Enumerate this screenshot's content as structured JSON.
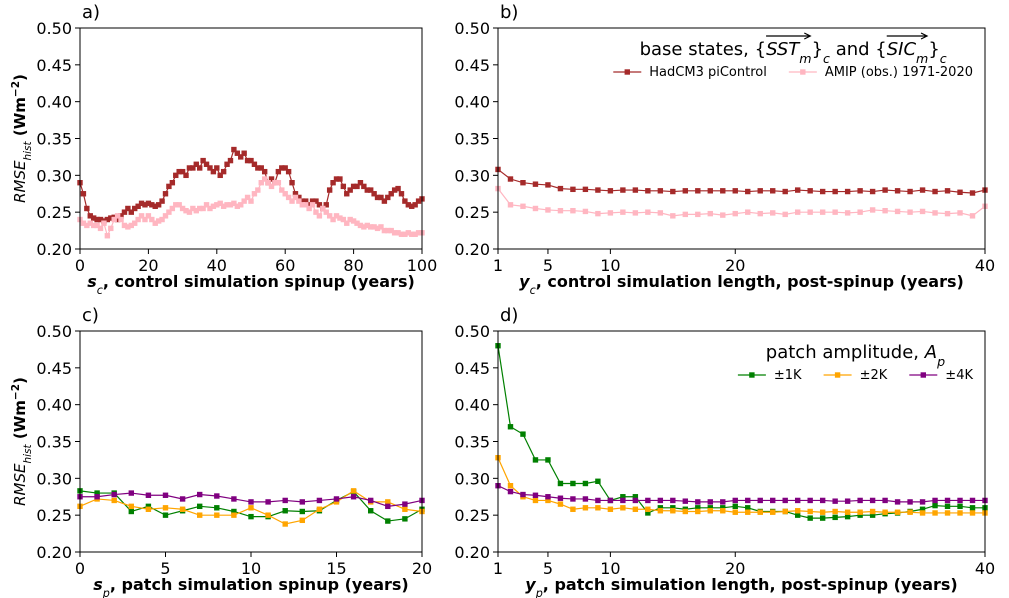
{
  "chart_data": [
    {
      "type": "line",
      "panel_label": "a)",
      "xlabel": [
        {
          "text": "s",
          "italic": true,
          "bold": true
        },
        {
          "text": "c",
          "italic": true,
          "shift": "sub"
        },
        {
          "text": ", control simulation spinup (years)",
          "bold": true
        }
      ],
      "ylabel": [
        {
          "text": "RMSE",
          "italic": true
        },
        {
          "text": "hist",
          "italic": true,
          "shift": "sub"
        },
        {
          "text": " (Wm",
          "bold": true
        },
        {
          "text": "−2",
          "bold": true,
          "shift": "super"
        },
        {
          "text": ")",
          "bold": true
        }
      ],
      "xlim": [
        0,
        100
      ],
      "xticks": [
        0,
        20,
        40,
        60,
        80,
        100
      ],
      "ylim": [
        0.2,
        0.5
      ],
      "yticks": [
        {
          "value": 0.2,
          "label": "0.20"
        },
        {
          "value": 0.25,
          "label": "0.25"
        },
        {
          "value": 0.3,
          "label": "0.30"
        },
        {
          "value": 0.35,
          "label": "0.35"
        },
        {
          "value": 0.4,
          "label": "0.40"
        },
        {
          "value": 0.45,
          "label": "0.45"
        },
        {
          "value": 0.5,
          "label": "0.50"
        }
      ],
      "x": [
        0,
        1,
        2,
        3,
        4,
        5,
        6,
        7,
        8,
        9,
        10,
        11,
        12,
        13,
        14,
        15,
        16,
        17,
        18,
        19,
        20,
        21,
        22,
        23,
        24,
        25,
        26,
        27,
        28,
        29,
        30,
        31,
        32,
        33,
        34,
        35,
        36,
        37,
        38,
        39,
        40,
        41,
        42,
        43,
        44,
        45,
        46,
        47,
        48,
        49,
        50,
        51,
        52,
        53,
        54,
        55,
        56,
        57,
        58,
        59,
        60,
        61,
        62,
        63,
        64,
        65,
        66,
        67,
        68,
        69,
        70,
        71,
        72,
        73,
        74,
        75,
        76,
        77,
        78,
        79,
        80,
        81,
        82,
        83,
        84,
        85,
        86,
        87,
        88,
        89,
        90,
        91,
        92,
        93,
        94,
        95,
        96,
        97,
        98,
        99,
        100
      ],
      "series": [
        {
          "color": "#a52a2a",
          "values": [
            0.29,
            0.275,
            0.255,
            0.245,
            0.242,
            0.24,
            0.24,
            0.238,
            0.24,
            0.242,
            0.243,
            0.24,
            0.245,
            0.25,
            0.255,
            0.25,
            0.255,
            0.258,
            0.262,
            0.26,
            0.262,
            0.26,
            0.258,
            0.26,
            0.265,
            0.275,
            0.285,
            0.29,
            0.3,
            0.305,
            0.305,
            0.3,
            0.31,
            0.31,
            0.315,
            0.31,
            0.32,
            0.315,
            0.31,
            0.305,
            0.31,
            0.3,
            0.305,
            0.315,
            0.32,
            0.335,
            0.33,
            0.325,
            0.33,
            0.32,
            0.32,
            0.315,
            0.31,
            0.31,
            0.305,
            0.29,
            0.295,
            0.29,
            0.305,
            0.31,
            0.31,
            0.305,
            0.29,
            0.275,
            0.27,
            0.265,
            0.265,
            0.26,
            0.265,
            0.265,
            0.26,
            0.255,
            0.26,
            0.28,
            0.29,
            0.295,
            0.295,
            0.285,
            0.275,
            0.28,
            0.285,
            0.285,
            0.29,
            0.285,
            0.28,
            0.28,
            0.275,
            0.27,
            0.27,
            0.265,
            0.27,
            0.275,
            0.28,
            0.282,
            0.275,
            0.265,
            0.26,
            0.258,
            0.26,
            0.265,
            0.268
          ]
        },
        {
          "color": "#ffb6c1",
          "values": [
            0.24,
            0.235,
            0.232,
            0.235,
            0.232,
            0.232,
            0.228,
            0.235,
            0.218,
            0.228,
            0.24,
            0.245,
            0.24,
            0.232,
            0.23,
            0.232,
            0.235,
            0.24,
            0.245,
            0.24,
            0.245,
            0.24,
            0.235,
            0.238,
            0.24,
            0.245,
            0.25,
            0.255,
            0.26,
            0.26,
            0.255,
            0.252,
            0.25,
            0.255,
            0.252,
            0.255,
            0.255,
            0.26,
            0.255,
            0.258,
            0.26,
            0.262,
            0.258,
            0.26,
            0.26,
            0.262,
            0.258,
            0.26,
            0.265,
            0.27,
            0.265,
            0.275,
            0.28,
            0.29,
            0.295,
            0.29,
            0.285,
            0.29,
            0.29,
            0.28,
            0.275,
            0.27,
            0.265,
            0.27,
            0.265,
            0.26,
            0.26,
            0.255,
            0.26,
            0.25,
            0.245,
            0.255,
            0.25,
            0.245,
            0.24,
            0.245,
            0.242,
            0.24,
            0.235,
            0.24,
            0.238,
            0.235,
            0.232,
            0.23,
            0.232,
            0.23,
            0.23,
            0.228,
            0.23,
            0.225,
            0.225,
            0.225,
            0.222,
            0.222,
            0.22,
            0.22,
            0.222,
            0.22,
            0.22,
            0.222,
            0.222
          ]
        }
      ]
    },
    {
      "type": "line",
      "panel_label": "b)",
      "xlabel": [
        {
          "text": "y",
          "italic": true,
          "bold": true
        },
        {
          "text": "c",
          "italic": true,
          "shift": "sub"
        },
        {
          "text": ", control simulation length, post-spinup (years)",
          "bold": true
        }
      ],
      "xlim": [
        1,
        40
      ],
      "xticks": [
        1,
        5,
        10,
        20,
        40
      ],
      "ylim": [
        0.2,
        0.5
      ],
      "yticks": [
        {
          "value": 0.2,
          "label": "0.20"
        },
        {
          "value": 0.25,
          "label": "0.25"
        },
        {
          "value": 0.3,
          "label": "0.30"
        },
        {
          "value": 0.35,
          "label": "0.35"
        },
        {
          "value": 0.4,
          "label": "0.40"
        },
        {
          "value": 0.45,
          "label": "0.45"
        },
        {
          "value": 0.5,
          "label": "0.50"
        }
      ],
      "legend": {
        "title": [
          {
            "text": "base states, {"
          },
          {
            "text": "SST",
            "italic": true,
            "overarrow": true
          },
          {
            "text": "m",
            "italic": true,
            "shift": "sub"
          },
          {
            "text": "}"
          },
          {
            "text": "c",
            "italic": true,
            "shift": "sub"
          },
          {
            "text": " and {"
          },
          {
            "text": "SIC",
            "italic": true,
            "overarrow": true
          },
          {
            "text": "m",
            "italic": true,
            "shift": "sub"
          },
          {
            "text": "}"
          },
          {
            "text": "c",
            "italic": true,
            "shift": "sub"
          }
        ]
      },
      "x": [
        1,
        2,
        3,
        4,
        5,
        6,
        7,
        8,
        9,
        10,
        11,
        12,
        13,
        14,
        15,
        16,
        17,
        18,
        19,
        20,
        21,
        22,
        23,
        24,
        25,
        26,
        27,
        28,
        29,
        30,
        31,
        32,
        33,
        34,
        35,
        36,
        37,
        38,
        39,
        40
      ],
      "series": [
        {
          "name": "HadCM3 piControl",
          "color": "#a52a2a",
          "values": [
            0.308,
            0.295,
            0.29,
            0.288,
            0.287,
            0.282,
            0.281,
            0.281,
            0.28,
            0.279,
            0.28,
            0.28,
            0.279,
            0.279,
            0.278,
            0.279,
            0.279,
            0.279,
            0.279,
            0.279,
            0.278,
            0.279,
            0.279,
            0.278,
            0.28,
            0.279,
            0.278,
            0.278,
            0.278,
            0.279,
            0.278,
            0.28,
            0.279,
            0.278,
            0.28,
            0.278,
            0.279,
            0.277,
            0.276,
            0.28
          ]
        },
        {
          "name": "AMIP (obs.) 1971-2020",
          "color": "#ffb6c1",
          "values": [
            0.282,
            0.26,
            0.258,
            0.255,
            0.253,
            0.252,
            0.252,
            0.251,
            0.248,
            0.249,
            0.25,
            0.249,
            0.25,
            0.249,
            0.245,
            0.247,
            0.247,
            0.248,
            0.246,
            0.248,
            0.25,
            0.248,
            0.249,
            0.247,
            0.25,
            0.25,
            0.25,
            0.25,
            0.249,
            0.25,
            0.253,
            0.252,
            0.251,
            0.25,
            0.251,
            0.249,
            0.248,
            0.249,
            0.245,
            0.258
          ]
        }
      ]
    },
    {
      "type": "line",
      "panel_label": "c)",
      "xlabel": [
        {
          "text": "s",
          "italic": true,
          "bold": true
        },
        {
          "text": "p",
          "italic": true,
          "shift": "sub"
        },
        {
          "text": ", patch simulation spinup (years)",
          "bold": true
        }
      ],
      "ylabel": [
        {
          "text": "RMSE",
          "italic": true
        },
        {
          "text": "hist",
          "italic": true,
          "shift": "sub"
        },
        {
          "text": " (Wm",
          "bold": true
        },
        {
          "text": "−2",
          "bold": true,
          "shift": "super"
        },
        {
          "text": ")",
          "bold": true
        }
      ],
      "xlim": [
        0,
        20
      ],
      "xticks": [
        0,
        5,
        10,
        15,
        20
      ],
      "ylim": [
        0.2,
        0.5
      ],
      "yticks": [
        {
          "value": 0.2,
          "label": "0.20"
        },
        {
          "value": 0.25,
          "label": "0.25"
        },
        {
          "value": 0.3,
          "label": "0.30"
        },
        {
          "value": 0.35,
          "label": "0.35"
        },
        {
          "value": 0.4,
          "label": "0.40"
        },
        {
          "value": 0.45,
          "label": "0.45"
        },
        {
          "value": 0.5,
          "label": "0.50"
        }
      ],
      "x": [
        0,
        1,
        2,
        3,
        4,
        5,
        6,
        7,
        8,
        9,
        10,
        11,
        12,
        13,
        14,
        15,
        16,
        17,
        18,
        19,
        20
      ],
      "series": [
        {
          "color": "#008000",
          "values": [
            0.283,
            0.28,
            0.28,
            0.255,
            0.262,
            0.25,
            0.256,
            0.262,
            0.26,
            0.255,
            0.248,
            0.248,
            0.256,
            0.255,
            0.256,
            0.27,
            0.282,
            0.256,
            0.242,
            0.245,
            0.258
          ]
        },
        {
          "color": "#ffa500",
          "values": [
            0.262,
            0.272,
            0.27,
            0.262,
            0.258,
            0.26,
            0.258,
            0.25,
            0.25,
            0.25,
            0.26,
            0.25,
            0.238,
            0.243,
            0.258,
            0.268,
            0.283,
            0.268,
            0.268,
            0.258,
            0.255
          ]
        },
        {
          "color": "#800080",
          "values": [
            0.275,
            0.275,
            0.278,
            0.28,
            0.277,
            0.277,
            0.272,
            0.278,
            0.276,
            0.272,
            0.268,
            0.268,
            0.27,
            0.268,
            0.27,
            0.272,
            0.275,
            0.27,
            0.262,
            0.265,
            0.27
          ]
        }
      ]
    },
    {
      "type": "line",
      "panel_label": "d)",
      "xlabel": [
        {
          "text": "y",
          "italic": true,
          "bold": true
        },
        {
          "text": "p",
          "italic": true,
          "shift": "sub"
        },
        {
          "text": ", patch simulation length, post-spinup (years)",
          "bold": true
        }
      ],
      "xlim": [
        1,
        40
      ],
      "xticks": [
        1,
        5,
        10,
        20,
        40
      ],
      "ylim": [
        0.2,
        0.5
      ],
      "yticks": [
        {
          "value": 0.2,
          "label": "0.20"
        },
        {
          "value": 0.25,
          "label": "0.25"
        },
        {
          "value": 0.3,
          "label": "0.30"
        },
        {
          "value": 0.35,
          "label": "0.35"
        },
        {
          "value": 0.4,
          "label": "0.40"
        },
        {
          "value": 0.45,
          "label": "0.45"
        },
        {
          "value": 0.5,
          "label": "0.50"
        }
      ],
      "legend": {
        "title": [
          {
            "text": "patch amplitude, "
          },
          {
            "text": "A",
            "italic": true
          },
          {
            "text": "p",
            "italic": true,
            "shift": "sub"
          }
        ]
      },
      "x": [
        1,
        2,
        3,
        4,
        5,
        6,
        7,
        8,
        9,
        10,
        11,
        12,
        13,
        14,
        15,
        16,
        17,
        18,
        19,
        20,
        21,
        22,
        23,
        24,
        25,
        26,
        27,
        28,
        29,
        30,
        31,
        32,
        33,
        34,
        35,
        36,
        37,
        38,
        39,
        40
      ],
      "series": [
        {
          "name": "±1K",
          "color": "#008000",
          "values": [
            0.48,
            0.37,
            0.36,
            0.325,
            0.325,
            0.293,
            0.293,
            0.293,
            0.296,
            0.27,
            0.275,
            0.275,
            0.253,
            0.26,
            0.26,
            0.258,
            0.26,
            0.26,
            0.26,
            0.262,
            0.26,
            0.255,
            0.255,
            0.255,
            0.25,
            0.246,
            0.246,
            0.247,
            0.248,
            0.25,
            0.25,
            0.252,
            0.253,
            0.255,
            0.258,
            0.263,
            0.262,
            0.262,
            0.26,
            0.26
          ]
        },
        {
          "name": "±2K",
          "color": "#ffa500",
          "values": [
            0.328,
            0.29,
            0.275,
            0.27,
            0.27,
            0.265,
            0.258,
            0.26,
            0.26,
            0.258,
            0.26,
            0.258,
            0.258,
            0.256,
            0.256,
            0.255,
            0.255,
            0.256,
            0.256,
            0.254,
            0.254,
            0.254,
            0.254,
            0.255,
            0.256,
            0.255,
            0.254,
            0.255,
            0.254,
            0.254,
            0.255,
            0.254,
            0.254,
            0.254,
            0.253,
            0.253,
            0.253,
            0.253,
            0.253,
            0.253
          ]
        },
        {
          "name": "±4K",
          "color": "#800080",
          "values": [
            0.29,
            0.282,
            0.278,
            0.277,
            0.275,
            0.273,
            0.272,
            0.272,
            0.27,
            0.27,
            0.27,
            0.27,
            0.27,
            0.27,
            0.27,
            0.269,
            0.268,
            0.268,
            0.268,
            0.27,
            0.27,
            0.27,
            0.27,
            0.27,
            0.27,
            0.27,
            0.27,
            0.269,
            0.269,
            0.27,
            0.27,
            0.27,
            0.268,
            0.268,
            0.268,
            0.27,
            0.27,
            0.27,
            0.27,
            0.27
          ]
        }
      ]
    }
  ]
}
